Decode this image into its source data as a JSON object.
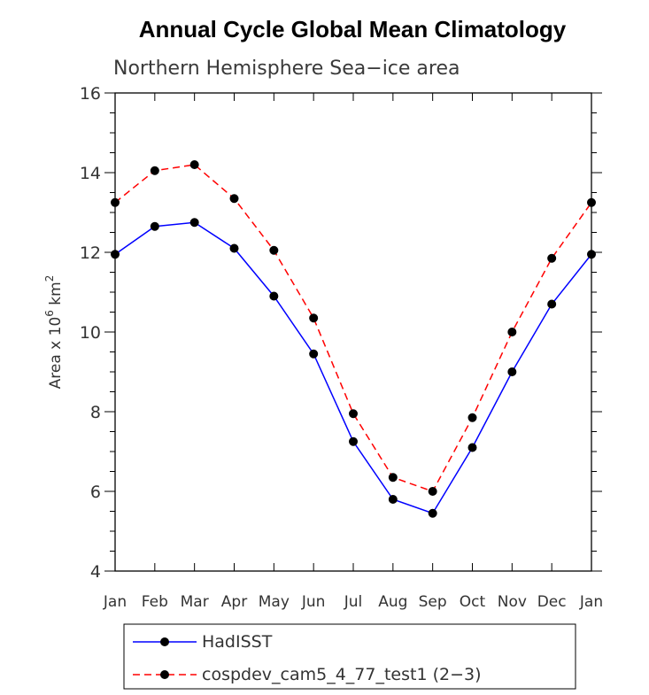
{
  "chart_data": {
    "type": "line",
    "title": "Annual Cycle Global Mean Climatology",
    "subtitle": "Northern Hemisphere Sea−ice area",
    "ylabel_prefix": "Area x 10",
    "ylabel_exp1": "6",
    "ylabel_mid": " km",
    "ylabel_exp2": "2",
    "categories": [
      "Jan",
      "Feb",
      "Mar",
      "Apr",
      "May",
      "Jun",
      "Jul",
      "Aug",
      "Sep",
      "Oct",
      "Nov",
      "Dec",
      "Jan"
    ],
    "ylim": [
      4,
      16
    ],
    "yticks": [
      4,
      6,
      8,
      10,
      12,
      14,
      16
    ],
    "series": [
      {
        "name": "HadISST",
        "color": "#0000ff",
        "dash": "solid",
        "values": [
          11.95,
          12.65,
          12.75,
          12.1,
          10.9,
          9.45,
          7.25,
          5.8,
          5.45,
          7.1,
          9.0,
          10.7,
          11.95
        ]
      },
      {
        "name": "cospdev_cam5_4_77_test1 (2−3)",
        "color": "#ff0000",
        "dash": "dashed",
        "values": [
          13.25,
          14.05,
          14.2,
          13.35,
          12.05,
          10.35,
          7.95,
          6.35,
          6.0,
          7.85,
          10.0,
          11.85,
          13.25
        ]
      }
    ],
    "grid": false,
    "legend_position": "bottom"
  }
}
